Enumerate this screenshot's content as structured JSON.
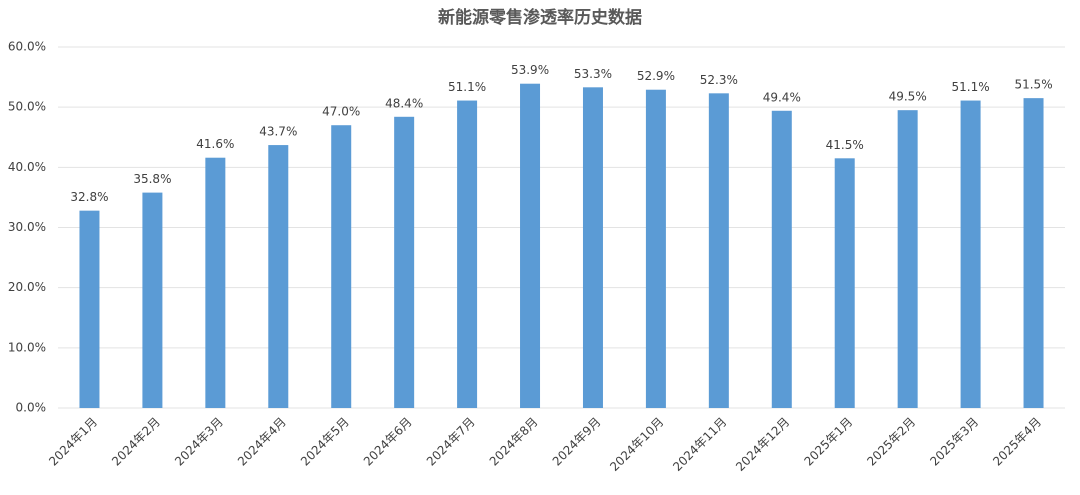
{
  "chart_data": {
    "type": "bar",
    "title": "新能源零售渗透率历史数据",
    "categories": [
      "2024年1月",
      "2024年2月",
      "2024年3月",
      "2024年4月",
      "2024年5月",
      "2024年6月",
      "2024年7月",
      "2024年8月",
      "2024年9月",
      "2024年10月",
      "2024年11月",
      "2024年12月",
      "2025年1月",
      "2025年2月",
      "2025年3月",
      "2025年4月"
    ],
    "values": [
      32.8,
      35.8,
      41.6,
      43.7,
      47.0,
      48.4,
      51.1,
      53.9,
      53.3,
      52.9,
      52.3,
      49.4,
      41.5,
      49.5,
      51.1,
      51.5
    ],
    "value_labels": [
      "32.8%",
      "35.8%",
      "41.6%",
      "43.7%",
      "47.0%",
      "48.4%",
      "51.1%",
      "53.9%",
      "53.3%",
      "52.9%",
      "52.3%",
      "49.4%",
      "41.5%",
      "49.5%",
      "51.1%",
      "51.5%"
    ],
    "color": "#5b9bd5",
    "ylim": [
      0,
      60
    ],
    "yticks": [
      {
        "value": 0,
        "label": "0.0%"
      },
      {
        "value": 10,
        "label": "10.0%"
      },
      {
        "value": 20,
        "label": "20.0%"
      },
      {
        "value": 30,
        "label": "30.0%"
      },
      {
        "value": 40,
        "label": "40.0%"
      },
      {
        "value": 50,
        "label": "50.0%"
      },
      {
        "value": 60,
        "label": "60.0%"
      }
    ],
    "grid": true
  }
}
